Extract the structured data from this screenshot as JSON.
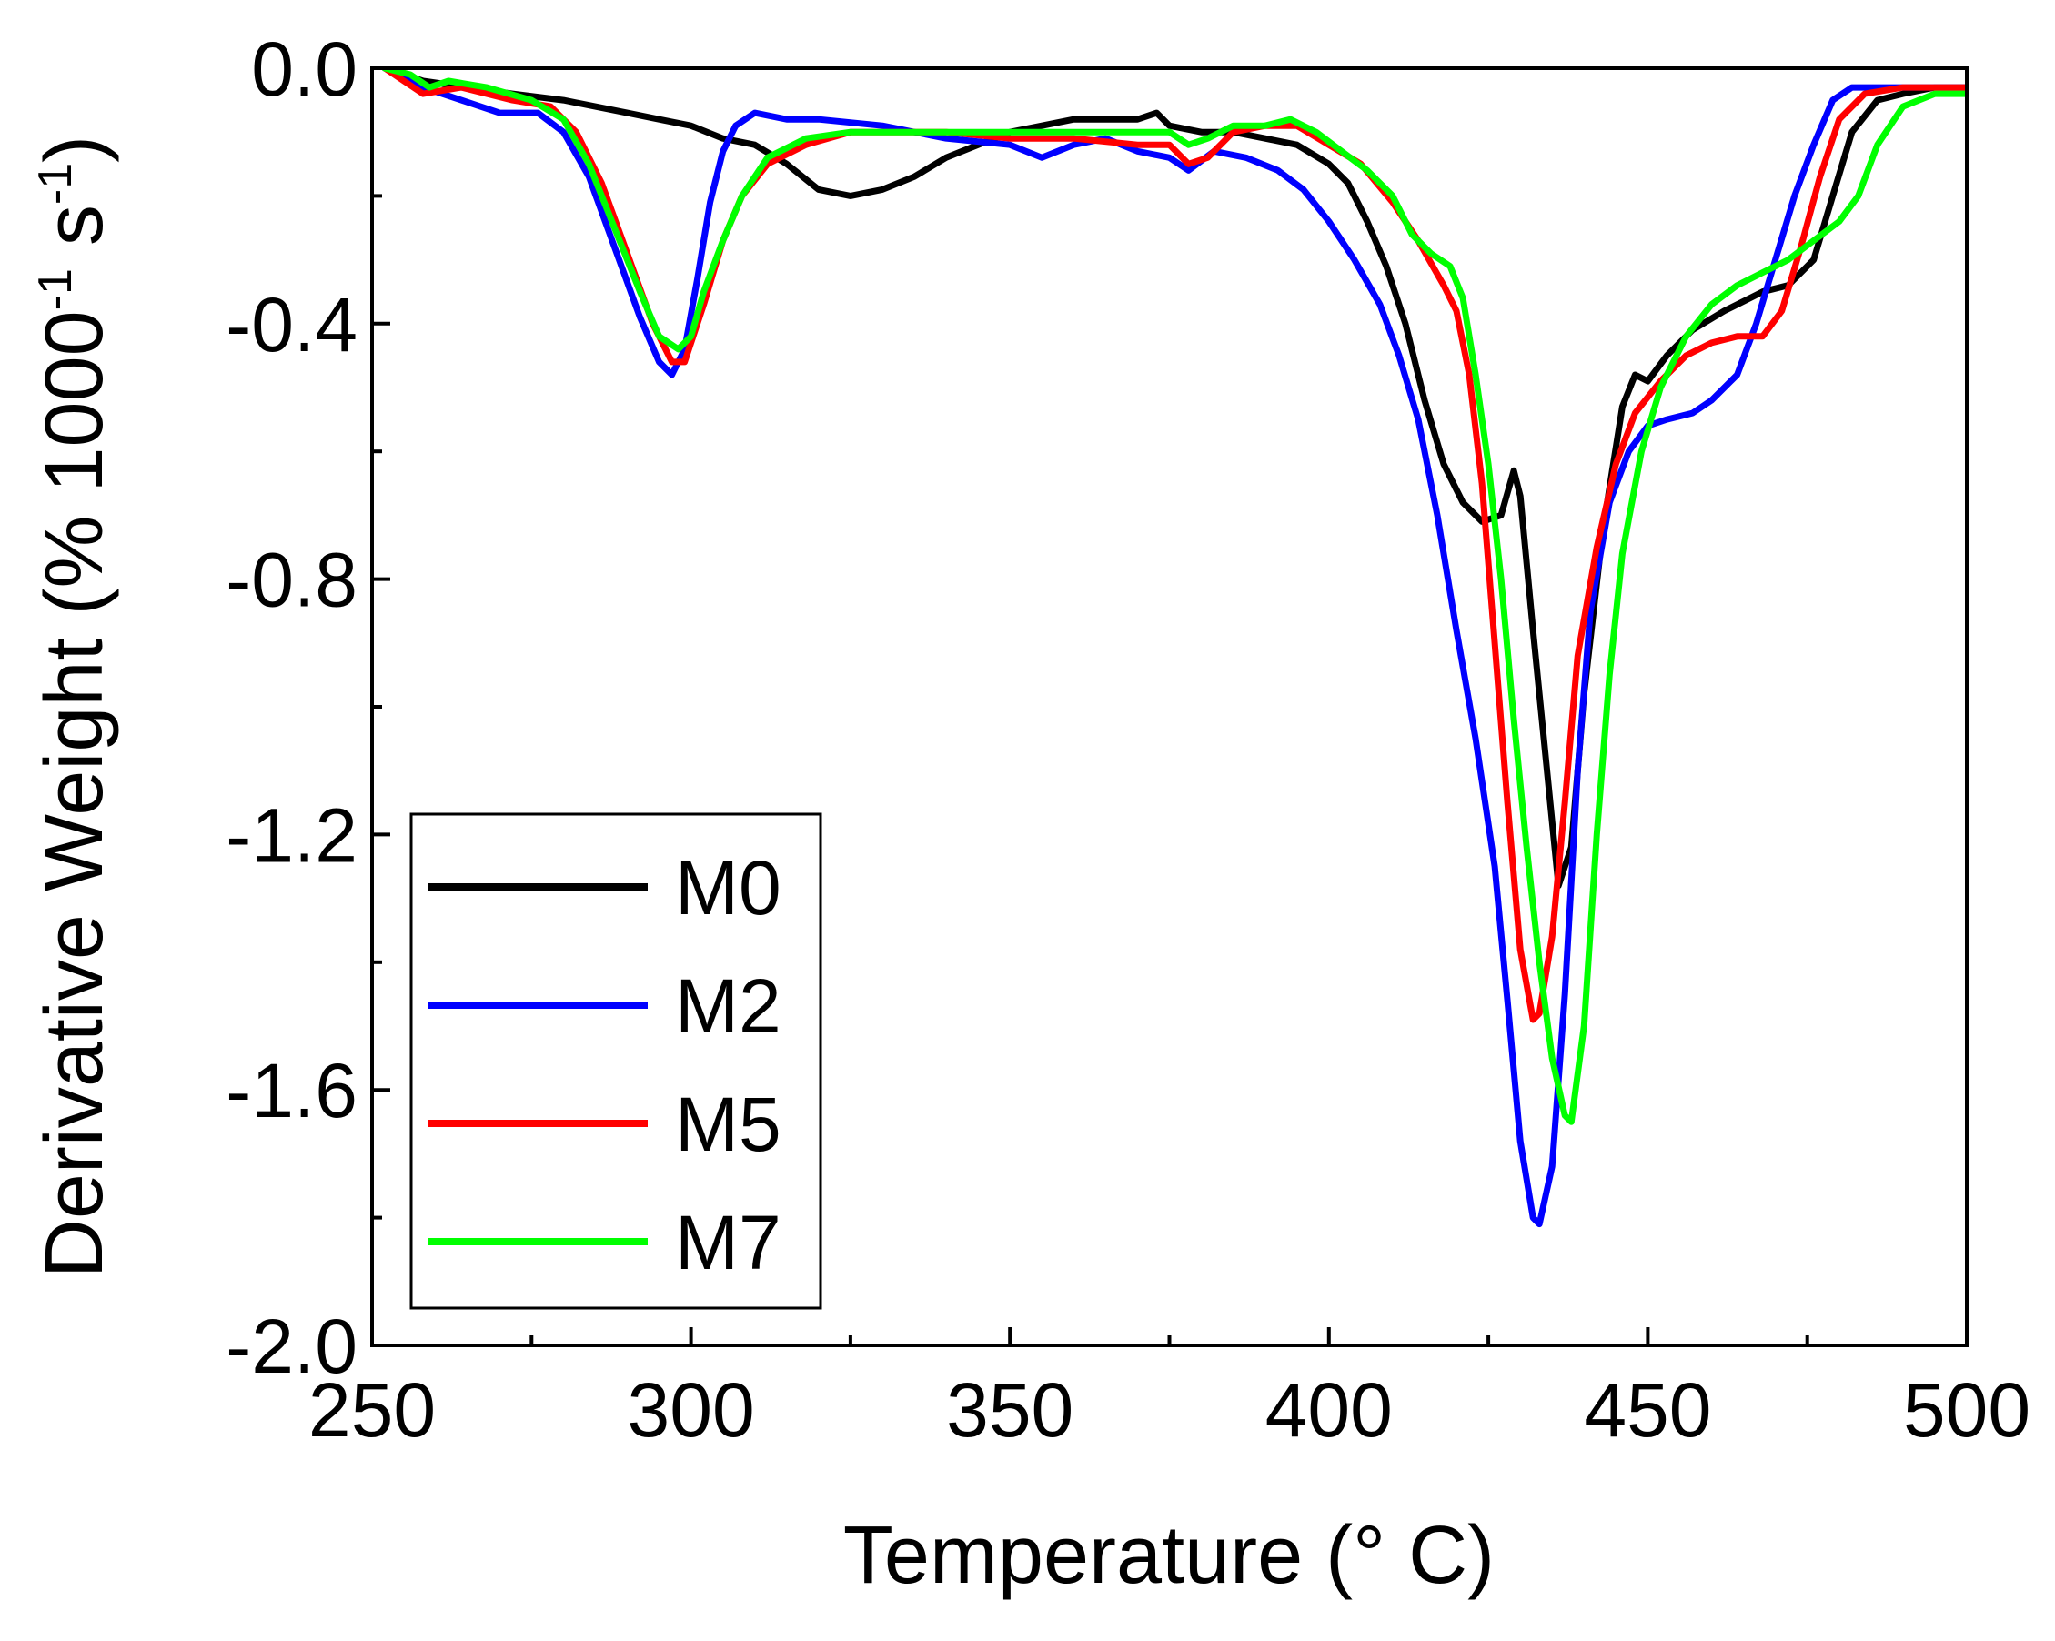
{
  "chart_data": {
    "type": "line",
    "title": "",
    "xlabel": "Temperature (° C)",
    "ylabel": {
      "main": "Derivative Weight (% 1000",
      "sup1": "-1",
      "mid": " s",
      "sup2": "-1",
      "end": ")"
    },
    "xlim": [
      250,
      500
    ],
    "ylim": [
      -2.0,
      0.0
    ],
    "xticks": [
      250,
      300,
      350,
      400,
      450,
      500
    ],
    "xtick_labels": [
      "250",
      "300",
      "350",
      "400",
      "450",
      "500"
    ],
    "yticks": [
      0.0,
      -0.4,
      -0.8,
      -1.2,
      -1.6,
      -2.0
    ],
    "ytick_labels": [
      "0.0",
      "-0.4",
      "-0.8",
      "-1.2",
      "-1.6",
      "-2.0"
    ],
    "legend_position": "bottom-left",
    "series": [
      {
        "name": "M0",
        "color": "#000000",
        "points": [
          [
            252,
            0.0
          ],
          [
            258,
            -0.02
          ],
          [
            265,
            -0.03
          ],
          [
            272,
            -0.04
          ],
          [
            280,
            -0.05
          ],
          [
            285,
            -0.06
          ],
          [
            290,
            -0.07
          ],
          [
            295,
            -0.08
          ],
          [
            300,
            -0.09
          ],
          [
            305,
            -0.11
          ],
          [
            310,
            -0.12
          ],
          [
            315,
            -0.15
          ],
          [
            320,
            -0.19
          ],
          [
            325,
            -0.2
          ],
          [
            330,
            -0.19
          ],
          [
            335,
            -0.17
          ],
          [
            340,
            -0.14
          ],
          [
            345,
            -0.12
          ],
          [
            350,
            -0.1
          ],
          [
            355,
            -0.09
          ],
          [
            360,
            -0.08
          ],
          [
            365,
            -0.08
          ],
          [
            370,
            -0.08
          ],
          [
            373,
            -0.07
          ],
          [
            375,
            -0.09
          ],
          [
            380,
            -0.1
          ],
          [
            385,
            -0.1
          ],
          [
            390,
            -0.11
          ],
          [
            395,
            -0.12
          ],
          [
            400,
            -0.15
          ],
          [
            403,
            -0.18
          ],
          [
            406,
            -0.24
          ],
          [
            409,
            -0.31
          ],
          [
            412,
            -0.4
          ],
          [
            415,
            -0.52
          ],
          [
            418,
            -0.62
          ],
          [
            421,
            -0.68
          ],
          [
            424,
            -0.71
          ],
          [
            427,
            -0.7
          ],
          [
            429,
            -0.63
          ],
          [
            430,
            -0.67
          ],
          [
            432,
            -0.88
          ],
          [
            434,
            -1.08
          ],
          [
            436,
            -1.28
          ],
          [
            438,
            -1.22
          ],
          [
            440,
            -0.98
          ],
          [
            443,
            -0.72
          ],
          [
            446,
            -0.53
          ],
          [
            448,
            -0.48
          ],
          [
            450,
            -0.49
          ],
          [
            453,
            -0.45
          ],
          [
            457,
            -0.41
          ],
          [
            462,
            -0.38
          ],
          [
            468,
            -0.35
          ],
          [
            472,
            -0.34
          ],
          [
            476,
            -0.3
          ],
          [
            479,
            -0.2
          ],
          [
            482,
            -0.1
          ],
          [
            486,
            -0.05
          ],
          [
            490,
            -0.04
          ],
          [
            495,
            -0.03
          ],
          [
            500,
            -0.03
          ]
        ]
      },
      {
        "name": "M2",
        "color": "#0000ff",
        "points": [
          [
            252,
            0.0
          ],
          [
            258,
            -0.03
          ],
          [
            264,
            -0.05
          ],
          [
            270,
            -0.07
          ],
          [
            276,
            -0.07
          ],
          [
            280,
            -0.1
          ],
          [
            284,
            -0.17
          ],
          [
            288,
            -0.28
          ],
          [
            292,
            -0.39
          ],
          [
            295,
            -0.46
          ],
          [
            297,
            -0.48
          ],
          [
            299,
            -0.44
          ],
          [
            301,
            -0.33
          ],
          [
            303,
            -0.21
          ],
          [
            305,
            -0.13
          ],
          [
            307,
            -0.09
          ],
          [
            310,
            -0.07
          ],
          [
            315,
            -0.08
          ],
          [
            320,
            -0.08
          ],
          [
            330,
            -0.09
          ],
          [
            340,
            -0.11
          ],
          [
            350,
            -0.12
          ],
          [
            355,
            -0.14
          ],
          [
            360,
            -0.12
          ],
          [
            365,
            -0.11
          ],
          [
            370,
            -0.13
          ],
          [
            375,
            -0.14
          ],
          [
            378,
            -0.16
          ],
          [
            382,
            -0.13
          ],
          [
            387,
            -0.14
          ],
          [
            392,
            -0.16
          ],
          [
            396,
            -0.19
          ],
          [
            400,
            -0.24
          ],
          [
            404,
            -0.3
          ],
          [
            408,
            -0.37
          ],
          [
            411,
            -0.45
          ],
          [
            414,
            -0.55
          ],
          [
            417,
            -0.7
          ],
          [
            420,
            -0.88
          ],
          [
            423,
            -1.05
          ],
          [
            426,
            -1.25
          ],
          [
            428,
            -1.46
          ],
          [
            430,
            -1.68
          ],
          [
            432,
            -1.8
          ],
          [
            433,
            -1.81
          ],
          [
            435,
            -1.72
          ],
          [
            437,
            -1.45
          ],
          [
            439,
            -1.1
          ],
          [
            441,
            -0.85
          ],
          [
            444,
            -0.68
          ],
          [
            447,
            -0.6
          ],
          [
            450,
            -0.56
          ],
          [
            453,
            -0.55
          ],
          [
            457,
            -0.54
          ],
          [
            460,
            -0.52
          ],
          [
            464,
            -0.48
          ],
          [
            467,
            -0.4
          ],
          [
            470,
            -0.3
          ],
          [
            473,
            -0.2
          ],
          [
            476,
            -0.12
          ],
          [
            479,
            -0.05
          ],
          [
            482,
            -0.03
          ],
          [
            486,
            -0.03
          ],
          [
            490,
            -0.03
          ],
          [
            495,
            -0.03
          ],
          [
            500,
            -0.03
          ]
        ]
      },
      {
        "name": "M5",
        "color": "#ff0000",
        "points": [
          [
            252,
            0.0
          ],
          [
            258,
            -0.04
          ],
          [
            264,
            -0.03
          ],
          [
            272,
            -0.05
          ],
          [
            278,
            -0.06
          ],
          [
            282,
            -0.1
          ],
          [
            286,
            -0.18
          ],
          [
            290,
            -0.29
          ],
          [
            294,
            -0.4
          ],
          [
            297,
            -0.46
          ],
          [
            299,
            -0.46
          ],
          [
            302,
            -0.37
          ],
          [
            305,
            -0.27
          ],
          [
            308,
            -0.2
          ],
          [
            312,
            -0.15
          ],
          [
            318,
            -0.12
          ],
          [
            325,
            -0.1
          ],
          [
            330,
            -0.1
          ],
          [
            340,
            -0.1
          ],
          [
            350,
            -0.11
          ],
          [
            360,
            -0.11
          ],
          [
            370,
            -0.12
          ],
          [
            375,
            -0.12
          ],
          [
            378,
            -0.15
          ],
          [
            381,
            -0.14
          ],
          [
            385,
            -0.1
          ],
          [
            390,
            -0.09
          ],
          [
            395,
            -0.09
          ],
          [
            400,
            -0.12
          ],
          [
            405,
            -0.15
          ],
          [
            410,
            -0.21
          ],
          [
            414,
            -0.27
          ],
          [
            418,
            -0.34
          ],
          [
            420,
            -0.38
          ],
          [
            422,
            -0.48
          ],
          [
            424,
            -0.65
          ],
          [
            426,
            -0.9
          ],
          [
            428,
            -1.15
          ],
          [
            430,
            -1.38
          ],
          [
            432,
            -1.49
          ],
          [
            433,
            -1.48
          ],
          [
            435,
            -1.36
          ],
          [
            437,
            -1.15
          ],
          [
            439,
            -0.92
          ],
          [
            442,
            -0.75
          ],
          [
            445,
            -0.62
          ],
          [
            448,
            -0.54
          ],
          [
            452,
            -0.49
          ],
          [
            456,
            -0.45
          ],
          [
            460,
            -0.43
          ],
          [
            464,
            -0.42
          ],
          [
            468,
            -0.42
          ],
          [
            471,
            -0.38
          ],
          [
            474,
            -0.28
          ],
          [
            477,
            -0.17
          ],
          [
            480,
            -0.08
          ],
          [
            484,
            -0.04
          ],
          [
            490,
            -0.03
          ],
          [
            495,
            -0.03
          ],
          [
            500,
            -0.03
          ]
        ]
      },
      {
        "name": "M7",
        "color": "#00ff00",
        "points": [
          [
            252,
            0.0
          ],
          [
            256,
            -0.01
          ],
          [
            259,
            -0.03
          ],
          [
            262,
            -0.02
          ],
          [
            268,
            -0.03
          ],
          [
            275,
            -0.05
          ],
          [
            280,
            -0.08
          ],
          [
            284,
            -0.15
          ],
          [
            288,
            -0.25
          ],
          [
            292,
            -0.35
          ],
          [
            295,
            -0.42
          ],
          [
            298,
            -0.44
          ],
          [
            300,
            -0.42
          ],
          [
            302,
            -0.35
          ],
          [
            305,
            -0.27
          ],
          [
            308,
            -0.2
          ],
          [
            312,
            -0.14
          ],
          [
            318,
            -0.11
          ],
          [
            325,
            -0.1
          ],
          [
            330,
            -0.1
          ],
          [
            340,
            -0.1
          ],
          [
            350,
            -0.1
          ],
          [
            360,
            -0.1
          ],
          [
            370,
            -0.1
          ],
          [
            375,
            -0.1
          ],
          [
            378,
            -0.12
          ],
          [
            381,
            -0.11
          ],
          [
            385,
            -0.09
          ],
          [
            390,
            -0.09
          ],
          [
            394,
            -0.08
          ],
          [
            398,
            -0.1
          ],
          [
            402,
            -0.13
          ],
          [
            406,
            -0.16
          ],
          [
            410,
            -0.2
          ],
          [
            413,
            -0.26
          ],
          [
            416,
            -0.29
          ],
          [
            419,
            -0.31
          ],
          [
            421,
            -0.36
          ],
          [
            423,
            -0.48
          ],
          [
            425,
            -0.62
          ],
          [
            427,
            -0.8
          ],
          [
            429,
            -1.02
          ],
          [
            431,
            -1.22
          ],
          [
            433,
            -1.4
          ],
          [
            435,
            -1.55
          ],
          [
            437,
            -1.64
          ],
          [
            438,
            -1.65
          ],
          [
            440,
            -1.5
          ],
          [
            442,
            -1.2
          ],
          [
            444,
            -0.95
          ],
          [
            446,
            -0.76
          ],
          [
            449,
            -0.6
          ],
          [
            452,
            -0.5
          ],
          [
            456,
            -0.42
          ],
          [
            460,
            -0.37
          ],
          [
            464,
            -0.34
          ],
          [
            468,
            -0.32
          ],
          [
            472,
            -0.3
          ],
          [
            476,
            -0.27
          ],
          [
            480,
            -0.24
          ],
          [
            483,
            -0.2
          ],
          [
            486,
            -0.12
          ],
          [
            490,
            -0.06
          ],
          [
            495,
            -0.04
          ],
          [
            500,
            -0.04
          ]
        ]
      }
    ]
  }
}
